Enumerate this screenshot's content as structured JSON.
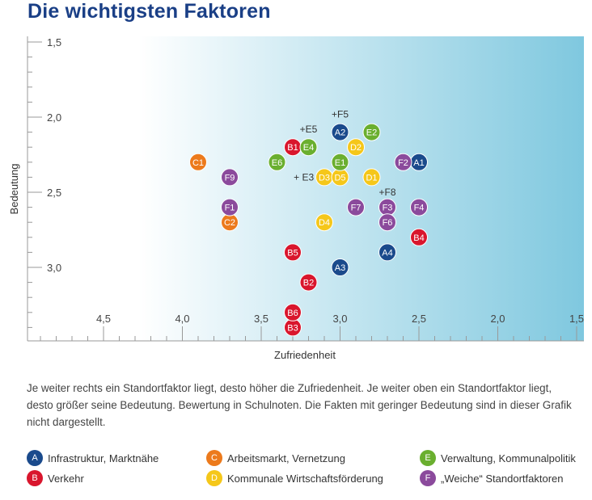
{
  "title": "Die wichtigsten Faktoren",
  "caption": "Je weiter rechts ein Standortfaktor liegt, desto höher die Zufriedenheit. Je weiter oben ein Standortfaktor liegt, desto größer seine Bedeutung. Bewertung in Schulnoten. Die Fakten mit geringer Bedeutung sind in dieser Grafik nicht dargestellt.",
  "legend": [
    {
      "letter": "A",
      "label": "Infrastruktur, Marktnähe",
      "color": "#1a4a8c"
    },
    {
      "letter": "C",
      "label": "Arbeitsmarkt, Vernetzung",
      "color": "#ec7a1c"
    },
    {
      "letter": "E",
      "label": "Verwaltung, Kommunalpolitik",
      "color": "#6aaf2f"
    },
    {
      "letter": "B",
      "label": "Verkehr",
      "color": "#d9162d"
    },
    {
      "letter": "D",
      "label": "Kommunale Wirtschaftsförderung",
      "color": "#f5c71a"
    },
    {
      "letter": "F",
      "label": "„Weiche“ Standortfaktoren",
      "color": "#8b4a9c"
    }
  ],
  "chart_data": {
    "type": "scatter",
    "xlabel": "Zufriedenheit",
    "ylabel": "Bedeutung",
    "xlim": [
      5.0,
      1.5
    ],
    "ylim": [
      1.5,
      3.5
    ],
    "x_axis_reversed": true,
    "y_axis_reversed": true,
    "x_ticks": [
      "4,5",
      "4,0",
      "3,5",
      "3,0",
      "2,5",
      "2,0",
      "1,5"
    ],
    "x_tick_values": [
      4.5,
      4.0,
      3.5,
      3.0,
      2.5,
      2.0,
      1.5
    ],
    "y_ticks": [
      "1,5",
      "2,0",
      "2,5",
      "3,0"
    ],
    "y_tick_values": [
      1.5,
      2.0,
      2.5,
      3.0
    ],
    "grid": false,
    "series": [
      {
        "name": "Infrastruktur, Marktnähe",
        "color": "#1a4a8c",
        "points": [
          {
            "label": "A1",
            "x": 2.5,
            "y": 2.3
          },
          {
            "label": "A2",
            "x": 3.0,
            "y": 2.1
          },
          {
            "label": "A3",
            "x": 3.0,
            "y": 3.0
          },
          {
            "label": "A4",
            "x": 2.7,
            "y": 2.9
          }
        ]
      },
      {
        "name": "Verkehr",
        "color": "#d9162d",
        "points": [
          {
            "label": "B1",
            "x": 3.3,
            "y": 2.2
          },
          {
            "label": "B2",
            "x": 3.2,
            "y": 3.1
          },
          {
            "label": "B3",
            "x": 3.3,
            "y": 3.4
          },
          {
            "label": "B4",
            "x": 2.5,
            "y": 2.8
          },
          {
            "label": "B5",
            "x": 3.3,
            "y": 2.9
          },
          {
            "label": "B6",
            "x": 3.3,
            "y": 3.3
          }
        ]
      },
      {
        "name": "Arbeitsmarkt, Vernetzung",
        "color": "#ec7a1c",
        "points": [
          {
            "label": "C1",
            "x": 3.9,
            "y": 2.3
          },
          {
            "label": "C2",
            "x": 3.7,
            "y": 2.7
          }
        ]
      },
      {
        "name": "Kommunale Wirtschaftsförderung",
        "color": "#f5c71a",
        "points": [
          {
            "label": "D1",
            "x": 2.8,
            "y": 2.4
          },
          {
            "label": "D2",
            "x": 2.9,
            "y": 2.2
          },
          {
            "label": "D3",
            "x": 3.1,
            "y": 2.4
          },
          {
            "label": "D4",
            "x": 3.1,
            "y": 2.7
          },
          {
            "label": "D5",
            "x": 3.0,
            "y": 2.4
          }
        ]
      },
      {
        "name": "Verwaltung, Kommunalpolitik",
        "color": "#6aaf2f",
        "points": [
          {
            "label": "E1",
            "x": 3.0,
            "y": 2.3
          },
          {
            "label": "E2",
            "x": 2.8,
            "y": 2.1
          },
          {
            "label": "E4",
            "x": 3.2,
            "y": 2.2
          },
          {
            "label": "E6",
            "x": 3.4,
            "y": 2.3
          }
        ]
      },
      {
        "name": "„Weiche“ Standortfaktoren",
        "color": "#8b4a9c",
        "points": [
          {
            "label": "F1",
            "x": 3.7,
            "y": 2.6
          },
          {
            "label": "F2",
            "x": 2.6,
            "y": 2.3
          },
          {
            "label": "F3",
            "x": 2.7,
            "y": 2.6
          },
          {
            "label": "F4",
            "x": 2.5,
            "y": 2.6
          },
          {
            "label": "F6",
            "x": 2.7,
            "y": 2.7
          },
          {
            "label": "F7",
            "x": 2.9,
            "y": 2.6
          },
          {
            "label": "F9",
            "x": 3.7,
            "y": 2.4
          }
        ]
      }
    ],
    "annotations": [
      {
        "text": "+F5",
        "x": 3.0,
        "y": 1.98
      },
      {
        "text": "+E5",
        "x": 3.2,
        "y": 2.08
      },
      {
        "text": "+ E3",
        "x": 3.23,
        "y": 2.4
      },
      {
        "text": "+F8",
        "x": 2.7,
        "y": 2.5
      }
    ]
  }
}
